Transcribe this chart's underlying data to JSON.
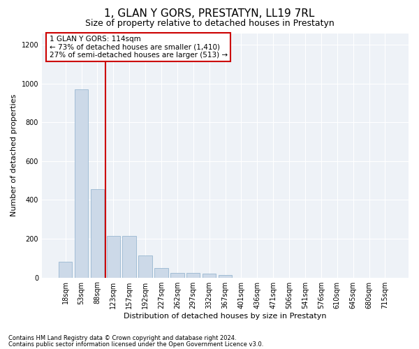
{
  "title": "1, GLAN Y GORS, PRESTATYN, LL19 7RL",
  "subtitle": "Size of property relative to detached houses in Prestatyn",
  "xlabel": "Distribution of detached houses by size in Prestatyn",
  "ylabel": "Number of detached properties",
  "bar_color": "#ccd9e8",
  "bar_edge_color": "#8baecb",
  "vline_color": "#cc0000",
  "vline_x_index": 2.5,
  "annotation_title": "1 GLAN Y GORS: 114sqm",
  "annotation_line1": "← 73% of detached houses are smaller (1,410)",
  "annotation_line2": "27% of semi-detached houses are larger (513) →",
  "annotation_box_color": "#ffffff",
  "annotation_box_edge": "#cc0000",
  "categories": [
    "18sqm",
    "53sqm",
    "88sqm",
    "123sqm",
    "157sqm",
    "192sqm",
    "227sqm",
    "262sqm",
    "297sqm",
    "332sqm",
    "367sqm",
    "401sqm",
    "436sqm",
    "471sqm",
    "506sqm",
    "541sqm",
    "576sqm",
    "610sqm",
    "645sqm",
    "680sqm",
    "715sqm"
  ],
  "values": [
    80,
    970,
    455,
    215,
    215,
    115,
    48,
    25,
    23,
    20,
    12,
    0,
    0,
    0,
    0,
    0,
    0,
    0,
    0,
    0,
    0
  ],
  "ylim": [
    0,
    1260
  ],
  "yticks": [
    0,
    200,
    400,
    600,
    800,
    1000,
    1200
  ],
  "footer_line1": "Contains HM Land Registry data © Crown copyright and database right 2024.",
  "footer_line2": "Contains public sector information licensed under the Open Government Licence v3.0.",
  "background_color": "#ffffff",
  "plot_bg_color": "#eef2f7",
  "grid_color": "#ffffff",
  "title_fontsize": 11,
  "subtitle_fontsize": 9,
  "ylabel_fontsize": 8,
  "xlabel_fontsize": 8,
  "tick_fontsize": 7,
  "footer_fontsize": 6,
  "ann_fontsize": 7.5
}
